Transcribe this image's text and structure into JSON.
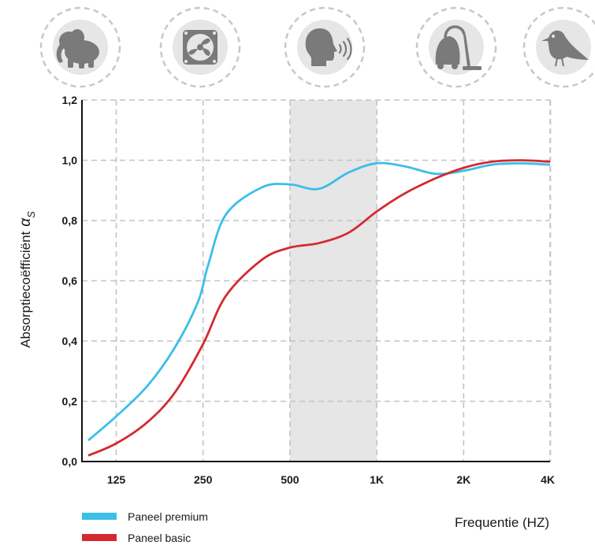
{
  "chart_data": {
    "type": "line",
    "xlabel": "Frequentie (HZ)",
    "ylabel": "Absorptiecoëfficiënt",
    "ylabel_symbol": "α",
    "ylabel_subscript": "S",
    "x_scale": "log2",
    "x_ticks": [
      125,
      250,
      500,
      1000,
      2000,
      4000
    ],
    "x_tick_labels": [
      "125",
      "250",
      "500",
      "1K",
      "2K",
      "4K"
    ],
    "y_ticks": [
      0.0,
      0.2,
      0.4,
      0.6,
      0.8,
      1.0,
      1.2
    ],
    "y_tick_labels": [
      "0,0",
      "0,2",
      "0,4",
      "0,6",
      "0,8",
      "1,0",
      "1,2"
    ],
    "ylim": [
      0,
      1.2
    ],
    "grid": true,
    "highlight_band": {
      "from": 500,
      "to": 1000,
      "color": "#e6e6e6"
    },
    "legend_position": "bottom-left",
    "icons": [
      "elephant-icon",
      "fan-icon",
      "speaking-head-icon",
      "vacuum-cleaner-icon",
      "bird-icon"
    ],
    "series": [
      {
        "name": "Paneel premium",
        "color": "#3bbfe8",
        "x": [
          100,
          125,
          160,
          200,
          240,
          260,
          300,
          400,
          500,
          630,
          800,
          1000,
          1250,
          1600,
          2000,
          2500,
          3150,
          4000
        ],
        "y": [
          0.07,
          0.15,
          0.25,
          0.38,
          0.53,
          0.65,
          0.82,
          0.91,
          0.92,
          0.905,
          0.96,
          0.99,
          0.98,
          0.955,
          0.965,
          0.985,
          0.99,
          0.985
        ]
      },
      {
        "name": "Paneel basic",
        "color": "#d42a2f",
        "x": [
          100,
          125,
          160,
          200,
          250,
          300,
          400,
          500,
          630,
          800,
          1000,
          1250,
          1600,
          2000,
          2500,
          3150,
          4000
        ],
        "y": [
          0.02,
          0.06,
          0.13,
          0.23,
          0.39,
          0.55,
          0.67,
          0.71,
          0.725,
          0.76,
          0.83,
          0.89,
          0.94,
          0.975,
          0.995,
          1.0,
          0.995
        ]
      }
    ]
  }
}
